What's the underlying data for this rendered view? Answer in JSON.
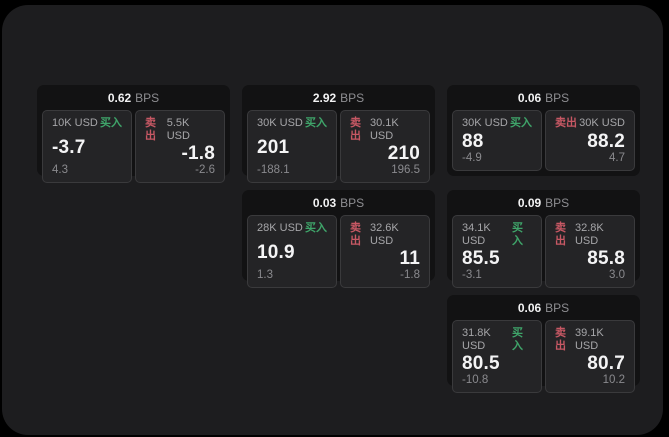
{
  "labels": {
    "bps_unit": "BPS",
    "buy": "买入",
    "sell": "卖出"
  },
  "colors": {
    "buy": "#3fa56a",
    "sell": "#c75864",
    "panel_bg": "#1d1d1f",
    "card_bg": "#121213",
    "tile_bg": "#242426",
    "tile_border": "#3a3a3c"
  },
  "cards": [
    {
      "row": 1,
      "col": 1,
      "bps": "0.62",
      "buy": {
        "amount": "10K USD",
        "main": "-3.7",
        "sub": "4.3"
      },
      "sell": {
        "amount": "5.5K USD",
        "main": "-1.8",
        "sub": "-2.6"
      }
    },
    {
      "row": 1,
      "col": 2,
      "bps": "2.92",
      "buy": {
        "amount": "30K USD",
        "main": "201",
        "sub": "-188.1"
      },
      "sell": {
        "amount": "30.1K USD",
        "main": "210",
        "sub": "196.5"
      }
    },
    {
      "row": 1,
      "col": 3,
      "bps": "0.06",
      "buy": {
        "amount": "30K USD",
        "main": "88",
        "sub": "-4.9"
      },
      "sell": {
        "amount": "30K USD",
        "main": "88.2",
        "sub": "4.7"
      }
    },
    {
      "row": 2,
      "col": 2,
      "bps": "0.03",
      "buy": {
        "amount": "28K USD",
        "main": "10.9",
        "sub": "1.3"
      },
      "sell": {
        "amount": "32.6K USD",
        "main": "11",
        "sub": "-1.8"
      }
    },
    {
      "row": 2,
      "col": 3,
      "bps": "0.09",
      "buy": {
        "amount": "34.1K USD",
        "main": "85.5",
        "sub": "-3.1"
      },
      "sell": {
        "amount": "32.8K USD",
        "main": "85.8",
        "sub": "3.0"
      }
    },
    {
      "row": 3,
      "col": 3,
      "bps": "0.06",
      "buy": {
        "amount": "31.8K USD",
        "main": "80.5",
        "sub": "-10.8"
      },
      "sell": {
        "amount": "39.1K USD",
        "main": "80.7",
        "sub": "10.2"
      }
    }
  ]
}
